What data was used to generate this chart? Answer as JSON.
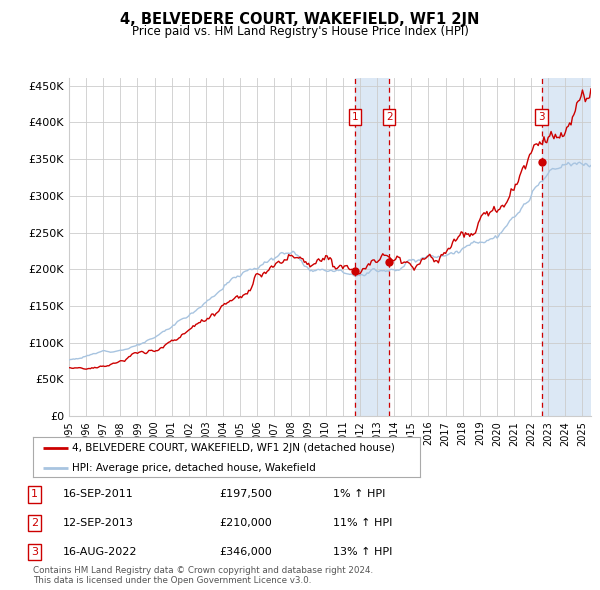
{
  "title": "4, BELVEDERE COURT, WAKEFIELD, WF1 2JN",
  "subtitle": "Price paid vs. HM Land Registry's House Price Index (HPI)",
  "legend_line1": "4, BELVEDERE COURT, WAKEFIELD, WF1 2JN (detached house)",
  "legend_line2": "HPI: Average price, detached house, Wakefield",
  "transactions": [
    {
      "num": 1,
      "date": "16-SEP-2011",
      "price": 197500,
      "pct": "1%",
      "x_year": 2011.71
    },
    {
      "num": 2,
      "date": "12-SEP-2013",
      "price": 210000,
      "pct": "11%",
      "x_year": 2013.71
    },
    {
      "num": 3,
      "date": "16-AUG-2022",
      "price": 346000,
      "pct": "13%",
      "x_year": 2022.62
    }
  ],
  "footnote1": "Contains HM Land Registry data © Crown copyright and database right 2024.",
  "footnote2": "This data is licensed under the Open Government Licence v3.0.",
  "hpi_color": "#a8c4e0",
  "price_color": "#cc0000",
  "background_color": "#ffffff",
  "grid_color": "#cccccc",
  "ylim": [
    0,
    460000
  ],
  "xlim_start": 1995.0,
  "xlim_end": 2025.5,
  "shade_color": "#dce8f5",
  "dashed_color": "#cc0000",
  "marker_color": "#cc0000",
  "yticks": [
    0,
    50000,
    100000,
    150000,
    200000,
    250000,
    300000,
    350000,
    400000,
    450000
  ],
  "ylabels": [
    "£0",
    "£50K",
    "£100K",
    "£150K",
    "£200K",
    "£250K",
    "£300K",
    "£350K",
    "£400K",
    "£450K"
  ]
}
